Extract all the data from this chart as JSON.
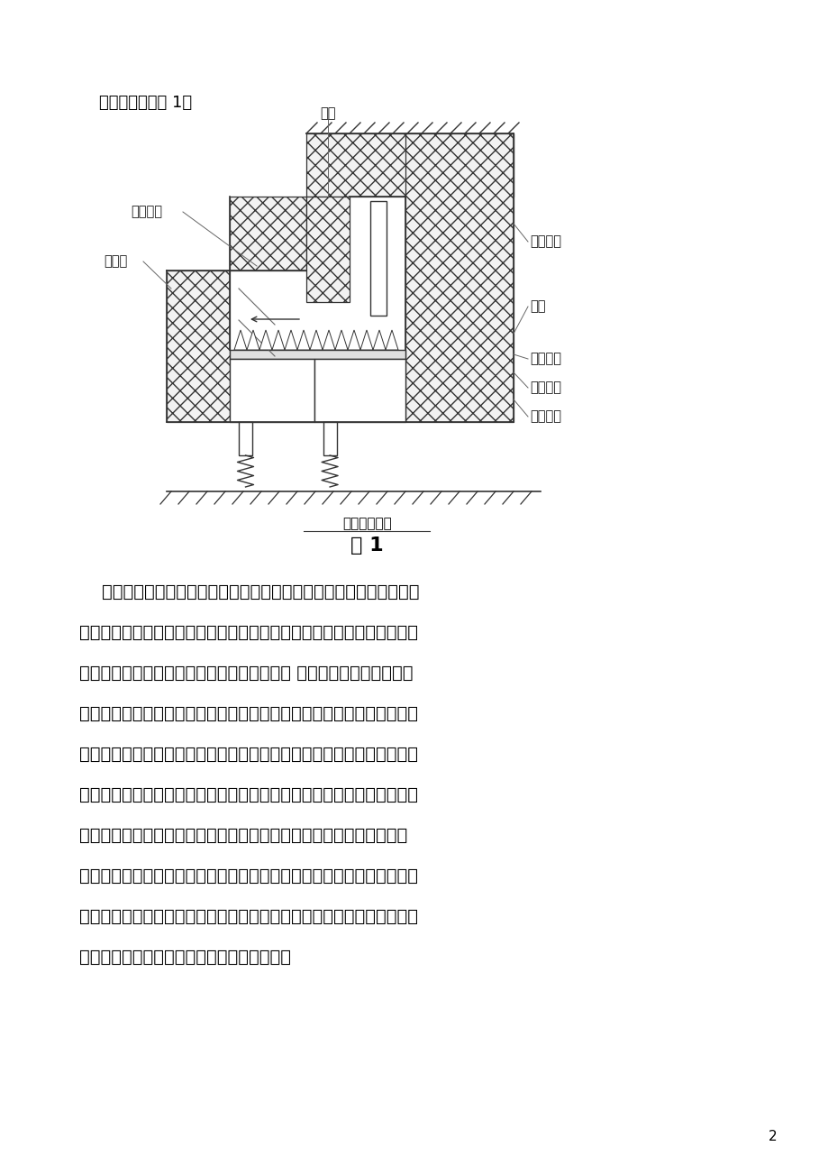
{
  "page_title": "返料阀结构如图 1。",
  "fig_caption_small": "返料阀结构图",
  "fig_caption_large": "图 1",
  "label_geban": "隔版",
  "label_jiaozhu": "浇筑顶板",
  "label_zuge": "阻隔墙",
  "label_fanlieliguan": "返料立管",
  "label_fengmao": "风帽",
  "label_fengmaodiban": "风帽底板",
  "label_songdong": "松动风室",
  "label_fanliao": "返料风室",
  "page_num": "2",
  "bg_color": "#ffffff",
  "text_color": "#000000",
  "line_color": "#333333",
  "para_lines": [
    "    循环流化床锅炉的炉内传热以颗粒对流换热为主，不同筛分粒度的颗",
    "粒组成内循环与外循环，内循环颗粒组成炉膛差压的主要因素，外循环是",
    "炉膛出口的颗粒被旋风分离器捕捉又回至炉膛 颗粒中的碳重新参与燃烧",
    "以提高锅炉燃烧效率。旋风分离器因切圆方向进入携带颗粒的烟气，在离",
    "心力的作用下，细的颗粒（灰）通过中心筒进入尾部烟道，粗颗粒被分离",
    "后落入分离器立管，颗粒在立管中形成一定高度的料封，这个高度与返料",
    "隔板与阻隔墙高度形成的阻力及炉膛回料口压力形成外循环物料的自平",
    "衡运行，料封高度的自平衡作用下阻碍了炉膛烟气返窜至锅炉尾部。返料",
    "阀风室的风帽起着阀内循环灰底部的流化作用，其风量形成一个浓度流化",
    "区，可以更好的发挥返料流畅的自平衡作用。"
  ]
}
